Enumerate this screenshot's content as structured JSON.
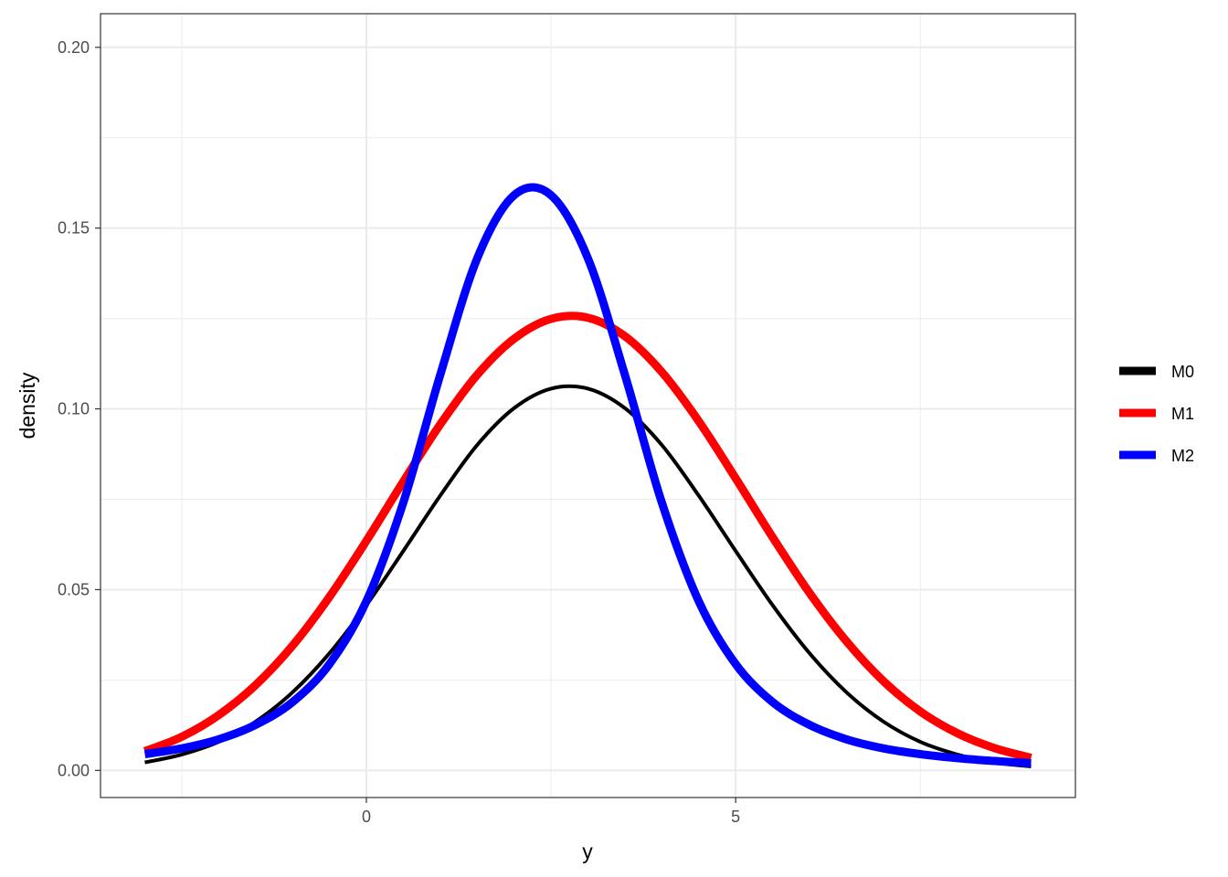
{
  "chart_data": {
    "type": "line",
    "xlabel": "y",
    "ylabel": "density",
    "xlim": [
      -3.6,
      9.6
    ],
    "ylim": [
      -0.0075,
      0.2093
    ],
    "x_major_ticks": [
      0,
      5
    ],
    "x_minor_ticks": [
      -2.5,
      2.5,
      7.5
    ],
    "y_major_ticks": [
      0.0,
      0.05,
      0.1,
      0.15,
      0.2
    ],
    "y_minor_ticks": [
      0.025,
      0.075,
      0.125,
      0.175
    ],
    "x_tick_labels": [
      "0",
      "5"
    ],
    "y_tick_labels": [
      "0.00",
      "0.05",
      "0.10",
      "0.15",
      "0.20"
    ],
    "grid": true,
    "legend_position": "right",
    "series": [
      {
        "name": "M0",
        "color": "#000000",
        "x": [
          -3.0,
          -2.5,
          -2.0,
          -1.5,
          -1.0,
          -0.5,
          0.0,
          0.5,
          1.0,
          1.5,
          2.0,
          2.5,
          3.0,
          3.5,
          4.0,
          4.5,
          5.0,
          5.5,
          6.0,
          6.5,
          7.0,
          7.5,
          8.0,
          8.5,
          9.0
        ],
        "y": [
          0.0022,
          0.0044,
          0.0079,
          0.0135,
          0.0216,
          0.0324,
          0.0457,
          0.0607,
          0.076,
          0.09,
          0.1002,
          0.1056,
          0.1056,
          0.1002,
          0.09,
          0.076,
          0.0607,
          0.0457,
          0.0324,
          0.0216,
          0.0135,
          0.0079,
          0.0044,
          0.0022,
          0.0011
        ]
      },
      {
        "name": "M1",
        "color": "#ff0000",
        "x": [
          -3.0,
          -2.5,
          -2.0,
          -1.5,
          -1.0,
          -0.5,
          0.0,
          0.5,
          1.0,
          1.5,
          2.0,
          2.5,
          3.0,
          3.5,
          4.0,
          4.5,
          5.0,
          5.5,
          6.0,
          6.5,
          7.0,
          7.5,
          8.0,
          8.5,
          9.0
        ],
        "y": [
          0.0053,
          0.0093,
          0.0153,
          0.0236,
          0.0345,
          0.048,
          0.0635,
          0.0799,
          0.0957,
          0.1094,
          0.1194,
          0.1249,
          0.1252,
          0.1201,
          0.1102,
          0.0966,
          0.0808,
          0.0645,
          0.0491,
          0.0357,
          0.0247,
          0.0163,
          0.0103,
          0.0062,
          0.0035
        ]
      },
      {
        "name": "M2",
        "color": "#0000ff",
        "x": [
          -3.0,
          -2.5,
          -2.0,
          -1.5,
          -1.0,
          -0.5,
          0.0,
          0.5,
          1.0,
          1.5,
          2.0,
          2.5,
          3.0,
          3.5,
          4.0,
          4.5,
          5.0,
          5.5,
          6.0,
          6.5,
          7.0,
          7.5,
          8.0,
          8.5,
          9.0
        ],
        "y": [
          0.0045,
          0.0061,
          0.0086,
          0.0126,
          0.0189,
          0.0294,
          0.0468,
          0.0741,
          0.1094,
          0.1416,
          0.1591,
          0.1591,
          0.1416,
          0.1094,
          0.0741,
          0.0468,
          0.0294,
          0.0189,
          0.0126,
          0.0086,
          0.0061,
          0.0045,
          0.0034,
          0.0026,
          0.002
        ]
      }
    ]
  }
}
